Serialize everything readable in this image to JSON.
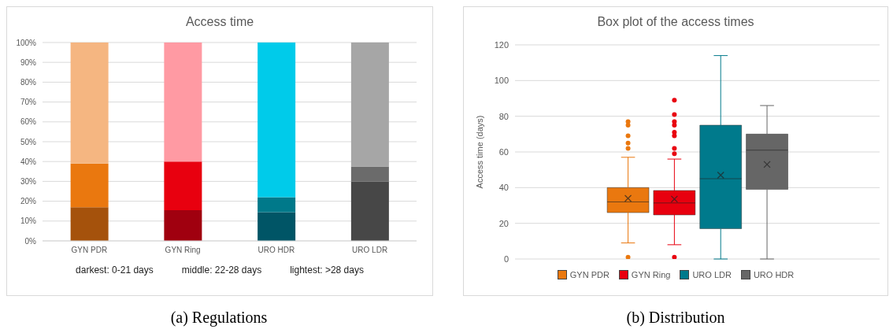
{
  "chart_data": [
    {
      "type": "bar",
      "title": "Access time",
      "stacked": true,
      "categories": [
        "GYN PDR",
        "GYN Ring",
        "URO HDR",
        "URO LDR"
      ],
      "series": [
        {
          "colors": [
            "#a5520c",
            "#a0000f",
            "#005566",
            "#474747"
          ],
          "values": [
            17,
            15.5,
            14.5,
            30
          ]
        },
        {
          "colors": [
            "#ea780f",
            "#e8000f",
            "#00798a",
            "#6b6b6b"
          ],
          "values": [
            22,
            24.5,
            7.5,
            7.5
          ]
        },
        {
          "colors": [
            "#f5b681",
            "#ff9aa3",
            "#00cbea",
            "#a6a6a6"
          ],
          "values": [
            61,
            60,
            78,
            62.5
          ]
        }
      ],
      "ylim": [
        0,
        100
      ],
      "yticks": [
        {
          "value": 0,
          "label": "0%"
        },
        {
          "value": 10,
          "label": "10%"
        },
        {
          "value": 20,
          "label": "20%"
        },
        {
          "value": 30,
          "label": "30%"
        },
        {
          "value": 40,
          "label": "40%"
        },
        {
          "value": 50,
          "label": "50%"
        },
        {
          "value": 60,
          "label": "60%"
        },
        {
          "value": 70,
          "label": "70%"
        },
        {
          "value": 80,
          "label": "80%"
        },
        {
          "value": 90,
          "label": "90%"
        },
        {
          "value": 100,
          "label": "100%"
        }
      ],
      "grid": "y",
      "annotations": [
        "darkest: 0-21 days",
        "middle: 22-28 days",
        "lightest: >28 days",
        "(a) Regulations"
      ]
    },
    {
      "type": "box",
      "title": "Box plot of the access times",
      "ylabel": "Access time (days)",
      "categories": [
        null
      ],
      "series": [
        {
          "name": "GYN PDR",
          "color": "#ea780f",
          "boxes": [
            {
              "low": 9,
              "q1": 26,
              "median": 32,
              "q3": 40,
              "high": 57,
              "mean": 34,
              "outliers": [
                1,
                62,
                65,
                69,
                75,
                77
              ]
            }
          ]
        },
        {
          "name": "GYN Ring",
          "color": "#e8000f",
          "boxes": [
            {
              "low": 8,
              "q1": 24.7,
              "median": 31.4,
              "q3": 38.4,
              "high": 56,
              "mean": 33.6,
              "outliers": [
                1,
                59,
                62,
                69,
                71,
                75,
                77,
                81,
                89
              ]
            }
          ]
        },
        {
          "name": "URO LDR",
          "color": "#007a8c",
          "boxes": [
            {
              "low": 0,
              "q1": 17,
              "median": 45,
              "q3": 75,
              "high": 114,
              "mean": 47
            }
          ]
        },
        {
          "name": "URO HDR",
          "color": "#666666",
          "boxes": [
            {
              "low": 0,
              "q1": 39,
              "median": 61,
              "q3": 70,
              "high": 86,
              "mean": 53
            }
          ]
        }
      ],
      "ylim": [
        0,
        120
      ],
      "yticks": [
        0,
        20,
        40,
        60,
        80,
        100,
        120
      ],
      "grid": "y",
      "legend": "bottom",
      "annotations": [
        "(b) Distribution"
      ]
    }
  ]
}
